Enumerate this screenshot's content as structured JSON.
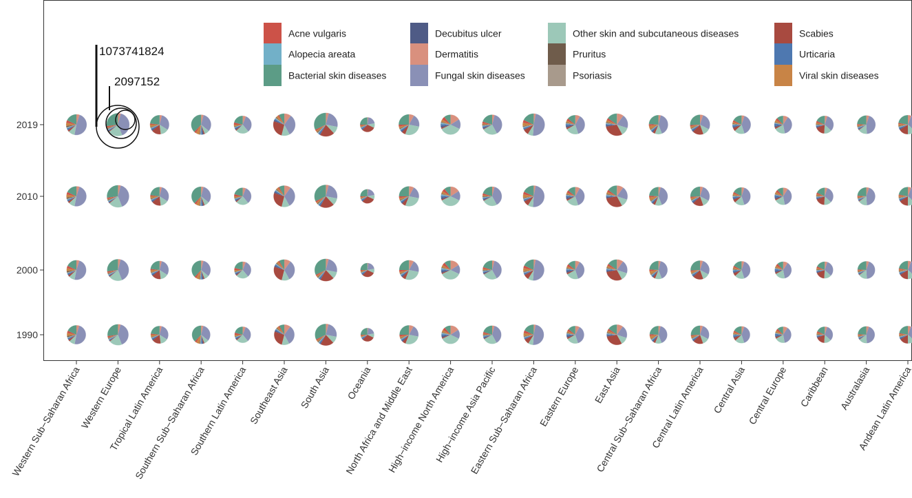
{
  "chart_data": {
    "type": "pie",
    "title": "",
    "xlabel": "",
    "ylabel": "",
    "years": [
      "2019",
      "2010",
      "2000",
      "1990"
    ],
    "regions": [
      "Western Sub-Saharan Africa",
      "Western Europe",
      "Tropical Latin America",
      "Southern Sub-Saharan Africa",
      "Southern Latin America",
      "Southeast Asia",
      "South Asia",
      "Oceania",
      "North Africa and Middle East",
      "High-income North America",
      "High-income Asia Pacific",
      "Eastern Sub-Saharan Africa",
      "Eastern Europe",
      "East Asia",
      "Central Sub-Saharan Africa",
      "Central Latin America",
      "Central Asia",
      "Central Europe",
      "Caribbean",
      "Australasia",
      "Andean Latin America"
    ],
    "region_labels": [
      "Western Sub−Saharan Africa",
      "Western Europe",
      "Tropical Latin America",
      "Southern Sub−Saharan Africa",
      "Southern Latin America",
      "Southeast Asia",
      "South Asia",
      "Oceania",
      "North Africa and Middle East",
      "High−income North America",
      "High−income Asia Pacific",
      "Eastern Sub−Saharan Africa",
      "Eastern Europe",
      "East Asia",
      "Central Sub−Saharan Africa",
      "Central Latin America",
      "Central Asia",
      "Central Europe",
      "Caribbean",
      "Australasia",
      "Andean Latin America"
    ],
    "categories": [
      "Acne vulgaris",
      "Alopecia areata",
      "Bacterial skin diseases",
      "Decubitus ulcer",
      "Dermatitis",
      "Fungal skin diseases",
      "Other skin and subcutaneous diseases",
      "Pruritus",
      "Psoriasis",
      "Scabies",
      "Urticaria",
      "Viral skin diseases"
    ],
    "colors": {
      "Acne vulgaris": "#cc5248",
      "Alopecia areata": "#72b0c8",
      "Bacterial skin diseases": "#5c9c86",
      "Decubitus ulcer": "#4f5b86",
      "Dermatitis": "#d9907e",
      "Fungal skin diseases": "#8a90b6",
      "Other skin and subcutaneous diseases": "#9cc8b8",
      "Pruritus": "#6f5c4b",
      "Psoriasis": "#a89a8c",
      "Scabies": "#a84a40",
      "Urticaria": "#4e78b0",
      "Viral skin diseases": "#c88446"
    },
    "pie_order": [
      "Dermatitis",
      "Fungal skin diseases",
      "Other skin and subcutaneous diseases",
      "Scabies",
      "Decubitus ulcer",
      "Urticaria",
      "Alopecia areata",
      "Psoriasis",
      "Pruritus",
      "Viral skin diseases",
      "Acne vulgaris",
      "Bacterial skin diseases"
    ],
    "size_legend": {
      "values": [
        1073741824,
        2097152
      ],
      "labels": [
        "1073741824",
        "2097152"
      ]
    },
    "pies": {
      "Western Sub-Saharan Africa": {
        "size": 0.56,
        "values": [
          5,
          48,
          10,
          3,
          1,
          2,
          1,
          1,
          2,
          5,
          4,
          18
        ]
      },
      "Western Europe": {
        "size": 0.62,
        "values": [
          4,
          40,
          20,
          1,
          1,
          1,
          1,
          1,
          1,
          1,
          2,
          27
        ]
      },
      "Tropical Latin America": {
        "size": 0.52,
        "values": [
          4,
          30,
          14,
          16,
          2,
          2,
          1,
          1,
          1,
          4,
          2,
          23
        ]
      },
      "Southern Sub-Saharan Africa": {
        "size": 0.54,
        "values": [
          4,
          32,
          8,
          2,
          2,
          2,
          1,
          1,
          1,
          6,
          3,
          38
        ]
      },
      "Southern Latin America": {
        "size": 0.48,
        "values": [
          6,
          33,
          24,
          2,
          2,
          2,
          1,
          1,
          1,
          3,
          4,
          21
        ]
      },
      "Southeast Asia": {
        "size": 0.6,
        "values": [
          10,
          32,
          12,
          26,
          2,
          2,
          1,
          1,
          1,
          3,
          2,
          8
        ]
      },
      "South Asia": {
        "size": 0.64,
        "values": [
          4,
          24,
          10,
          20,
          1,
          2,
          1,
          1,
          1,
          2,
          2,
          32
        ]
      },
      "Oceania": {
        "size": 0.4,
        "values": [
          2,
          20,
          10,
          30,
          2,
          3,
          1,
          1,
          1,
          3,
          2,
          25
        ]
      },
      "North Africa and Middle East": {
        "size": 0.56,
        "values": [
          8,
          20,
          28,
          6,
          2,
          2,
          1,
          1,
          1,
          3,
          3,
          25
        ]
      },
      "High-income North America": {
        "size": 0.54,
        "values": [
          16,
          16,
          36,
          2,
          3,
          3,
          2,
          1,
          1,
          4,
          5,
          11
        ]
      },
      "High-income Asia Pacific": {
        "size": 0.54,
        "values": [
          4,
          38,
          25,
          1,
          2,
          2,
          1,
          1,
          1,
          2,
          3,
          20
        ]
      },
      "Eastern Sub-Saharan Africa": {
        "size": 0.6,
        "values": [
          3,
          48,
          8,
          8,
          1,
          2,
          1,
          1,
          1,
          5,
          4,
          18
        ]
      },
      "Eastern Europe": {
        "size": 0.52,
        "values": [
          8,
          37,
          22,
          3,
          3,
          3,
          1,
          1,
          1,
          3,
          4,
          14
        ]
      },
      "East Asia": {
        "size": 0.6,
        "values": [
          10,
          20,
          12,
          30,
          2,
          2,
          1,
          1,
          1,
          3,
          3,
          15
        ]
      },
      "Central Sub-Saharan Africa": {
        "size": 0.52,
        "values": [
          4,
          40,
          12,
          4,
          2,
          2,
          1,
          1,
          1,
          6,
          3,
          24
        ]
      },
      "Central Latin America": {
        "size": 0.54,
        "values": [
          5,
          28,
          12,
          18,
          2,
          2,
          1,
          1,
          1,
          3,
          2,
          26
        ]
      },
      "Central Asia": {
        "size": 0.5,
        "values": [
          5,
          40,
          18,
          6,
          2,
          3,
          1,
          1,
          1,
          3,
          3,
          17
        ]
      },
      "Central Europe": {
        "size": 0.48,
        "values": [
          9,
          38,
          20,
          3,
          3,
          4,
          1,
          1,
          1,
          4,
          4,
          12
        ]
      },
      "Caribbean": {
        "size": 0.48,
        "values": [
          5,
          32,
          14,
          18,
          2,
          2,
          1,
          1,
          1,
          3,
          3,
          18
        ]
      },
      "Australasia": {
        "size": 0.5,
        "values": [
          5,
          44,
          16,
          1,
          1,
          2,
          1,
          1,
          1,
          2,
          2,
          24
        ]
      },
      "Andean Latin America": {
        "size": 0.52,
        "values": [
          6,
          30,
          14,
          16,
          2,
          2,
          1,
          1,
          1,
          3,
          2,
          22
        ]
      }
    }
  }
}
